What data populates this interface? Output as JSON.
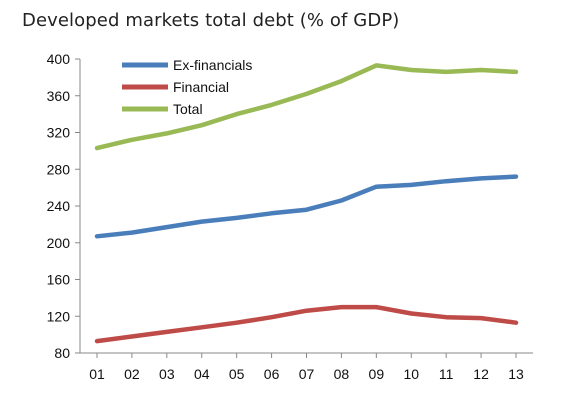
{
  "chart_data": {
    "type": "line",
    "title": "Developed markets total debt (% of GDP)",
    "xlabel": "",
    "ylabel": "",
    "categories": [
      "01",
      "02",
      "03",
      "04",
      "05",
      "06",
      "07",
      "08",
      "09",
      "10",
      "11",
      "12",
      "13"
    ],
    "ylim": [
      80,
      400
    ],
    "yticks": [
      80,
      120,
      160,
      200,
      240,
      280,
      320,
      360,
      400
    ],
    "grid": false,
    "legend_position": "top-left",
    "series": [
      {
        "name": "Ex-financials",
        "color": "#4a7ebb",
        "values": [
          207,
          211,
          217,
          223,
          227,
          232,
          236,
          246,
          261,
          263,
          267,
          270,
          272
        ]
      },
      {
        "name": "Financial",
        "color": "#be4b48",
        "values": [
          93,
          98,
          103,
          108,
          113,
          119,
          126,
          130,
          130,
          123,
          119,
          118,
          113
        ]
      },
      {
        "name": "Total",
        "color": "#98b954",
        "values": [
          303,
          312,
          319,
          328,
          340,
          350,
          362,
          376,
          393,
          388,
          386,
          388,
          386
        ]
      }
    ]
  }
}
